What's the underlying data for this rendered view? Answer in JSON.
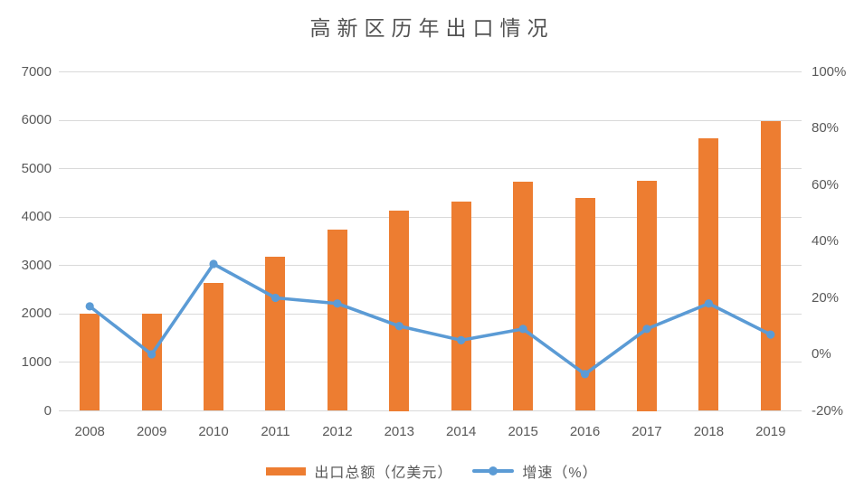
{
  "page": {
    "background": "#ffffff"
  },
  "chart_data": {
    "type": "bar-line-combo",
    "title": "高新区历年出口情况",
    "categories": [
      "2008",
      "2009",
      "2010",
      "2011",
      "2012",
      "2013",
      "2014",
      "2015",
      "2016",
      "2017",
      "2018",
      "2019"
    ],
    "series": [
      {
        "name": "出口总额（亿美元）",
        "type": "bar",
        "axis": "left",
        "color": "#ED7D31",
        "values": [
          2000,
          2000,
          2640,
          3180,
          3750,
          4130,
          4330,
          4730,
          4390,
          4760,
          5620,
          5980
        ]
      },
      {
        "name": "增速（%）",
        "type": "line",
        "axis": "right",
        "color": "#5B9BD5",
        "values": [
          17,
          0,
          32,
          20,
          18,
          10,
          5,
          9,
          -7,
          9,
          18,
          7
        ]
      }
    ],
    "left_axis": {
      "min": 0,
      "max": 7000,
      "step": 1000,
      "ticks": [
        "0",
        "1000",
        "2000",
        "3000",
        "4000",
        "5000",
        "6000",
        "7000"
      ]
    },
    "right_axis": {
      "min": -20,
      "max": 100,
      "step": 20,
      "ticks": [
        "-20%",
        "0%",
        "20%",
        "40%",
        "60%",
        "80%",
        "100%"
      ]
    },
    "grid": "horizontal-left-axis",
    "legend_position": "bottom",
    "colors": {
      "gridline": "#D9D9D9",
      "axis_text": "#595959",
      "title_text": "#535353"
    }
  }
}
